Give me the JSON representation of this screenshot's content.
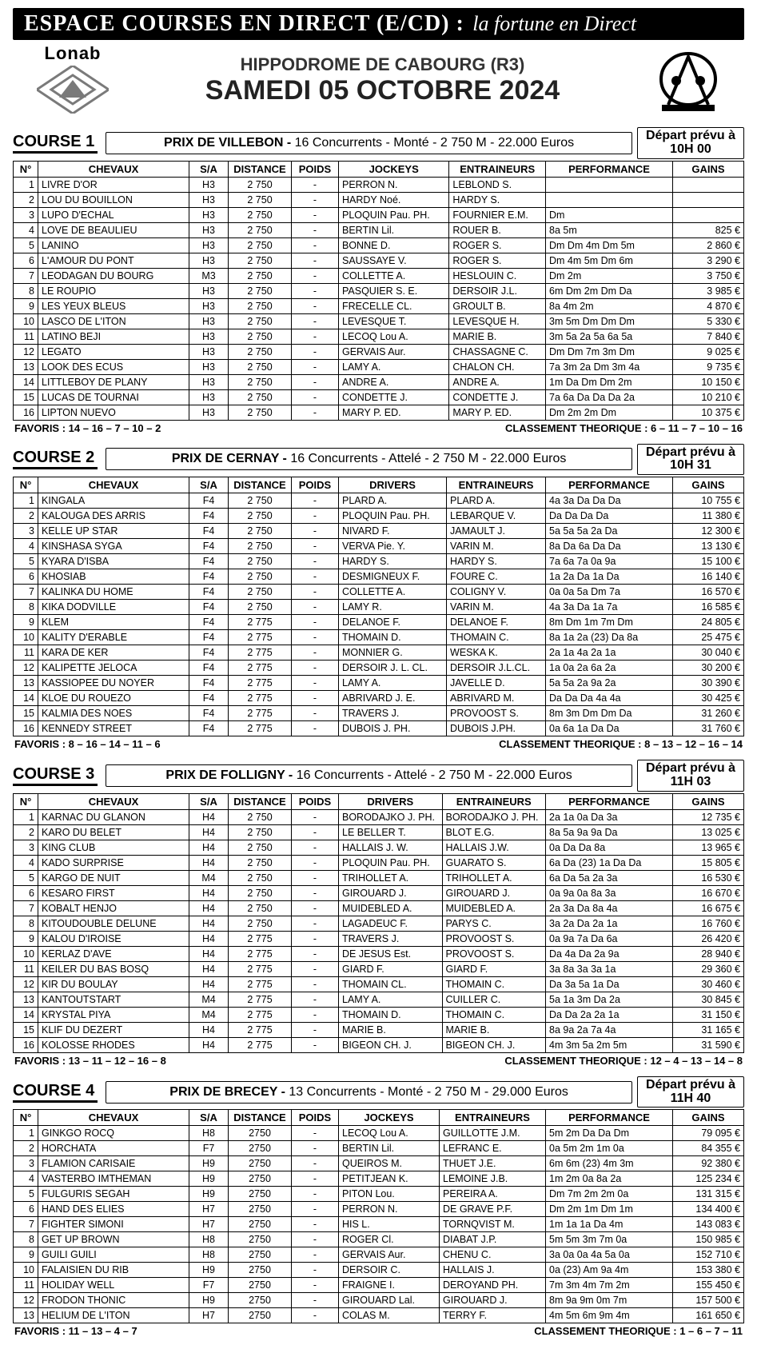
{
  "top": {
    "main": "ESPACE COURSES EN DIRECT (E/CD) :",
    "sub": "la fortune en Direct"
  },
  "header": {
    "hippodrome": "HIPPODROME DE CABOURG (R3)",
    "date": "SAMEDI 05 OCTOBRE 2024",
    "logo_text": "Lonab"
  },
  "table_headers_jockeys": {
    "num": "N°",
    "chev": "CHEVAUX",
    "sa": "S/A",
    "dist": "DISTANCE",
    "poids": "POIDS",
    "pilots": "JOCKEYS",
    "ent": "ENTRAINEURS",
    "perf": "PERFORMANCE",
    "gains": "GAINS"
  },
  "table_headers_drivers": {
    "num": "N°",
    "chev": "CHEVAUX",
    "sa": "S/A",
    "dist": "DISTANCE",
    "poids": "POIDS",
    "pilots": "DRIVERS",
    "ent": "ENTRAINEURS",
    "perf": "PERFORMANCE",
    "gains": "GAINS"
  },
  "depart_label": "Départ prévu à",
  "favoris_label": "FAVORIS :",
  "classement_label": "CLASSEMENT THEORIQUE :",
  "courses": [
    {
      "label": "COURSE 1",
      "race_name": "PRIX DE VILLEBON -",
      "race_details": "16 Concurrents - Monté - 2 750 M - 22.000 Euros",
      "depart": "10H 00",
      "pilots_key": "JOCKEYS",
      "favoris": "14 – 16 – 7 – 10 – 2",
      "classement": "6 – 11 – 7 – 10 – 16",
      "rows": [
        {
          "n": "1",
          "ch": "LIVRE D'OR",
          "sa": "H3",
          "d": "2 750",
          "p": "-",
          "pi": "PERRON N.",
          "en": "LEBLOND S.",
          "pe": "",
          "g": ""
        },
        {
          "n": "2",
          "ch": "LOU DU BOUILLON",
          "sa": "H3",
          "d": "2 750",
          "p": "-",
          "pi": "HARDY Noé.",
          "en": "HARDY S.",
          "pe": "",
          "g": ""
        },
        {
          "n": "3",
          "ch": "LUPO D'ECHAL",
          "sa": "H3",
          "d": "2 750",
          "p": "-",
          "pi": "PLOQUIN Pau. PH.",
          "en": "FOURNIER E.M.",
          "pe": "Dm",
          "g": ""
        },
        {
          "n": "4",
          "ch": "LOVE DE BEAULIEU",
          "sa": "H3",
          "d": "2 750",
          "p": "-",
          "pi": "BERTIN Lil.",
          "en": "ROUER B.",
          "pe": "8a 5m",
          "g": "825 €"
        },
        {
          "n": "5",
          "ch": "LANINO",
          "sa": "H3",
          "d": "2 750",
          "p": "-",
          "pi": "BONNE D.",
          "en": "ROGER S.",
          "pe": "Dm Dm 4m Dm 5m",
          "g": "2 860 €"
        },
        {
          "n": "6",
          "ch": "L'AMOUR DU PONT",
          "sa": "H3",
          "d": "2 750",
          "p": "-",
          "pi": "SAUSSAYE V.",
          "en": "ROGER S.",
          "pe": "Dm 4m 5m Dm 6m",
          "g": "3 290 €"
        },
        {
          "n": "7",
          "ch": "LEODAGAN DU BOURG",
          "sa": "M3",
          "d": "2 750",
          "p": "-",
          "pi": "COLLETTE A.",
          "en": "HESLOUIN C.",
          "pe": "Dm 2m",
          "g": "3 750 €"
        },
        {
          "n": "8",
          "ch": "LE ROUPIO",
          "sa": "H3",
          "d": "2 750",
          "p": "-",
          "pi": "PASQUIER S. E.",
          "en": "DERSOIR J.L.",
          "pe": "6m Dm 2m Dm Da",
          "g": "3 985 €"
        },
        {
          "n": "9",
          "ch": "LES YEUX BLEUS",
          "sa": "H3",
          "d": "2 750",
          "p": "-",
          "pi": "FRECELLE CL.",
          "en": "GROULT B.",
          "pe": "8a 4m 2m",
          "g": "4 870 €"
        },
        {
          "n": "10",
          "ch": "LASCO DE L'ITON",
          "sa": "H3",
          "d": "2 750",
          "p": "-",
          "pi": "LEVESQUE T.",
          "en": "LEVESQUE H.",
          "pe": "3m 5m Dm Dm Dm",
          "g": "5 330 €"
        },
        {
          "n": "11",
          "ch": "LATINO BEJI",
          "sa": "H3",
          "d": "2 750",
          "p": "-",
          "pi": "LECOQ Lou A.",
          "en": "MARIE B.",
          "pe": "3m 5a 2a 5a 6a 5a",
          "g": "7 840 €"
        },
        {
          "n": "12",
          "ch": "LEGATO",
          "sa": "H3",
          "d": "2 750",
          "p": "-",
          "pi": "GERVAIS Aur.",
          "en": "CHASSAGNE C.",
          "pe": "Dm Dm 7m 3m Dm",
          "g": "9 025 €"
        },
        {
          "n": "13",
          "ch": "LOOK DES ECUS",
          "sa": "H3",
          "d": "2 750",
          "p": "-",
          "pi": "LAMY A.",
          "en": "CHALON CH.",
          "pe": "7a 3m 2a Dm 3m 4a",
          "g": "9 735 €"
        },
        {
          "n": "14",
          "ch": "LITTLEBOY DE PLANY",
          "sa": "H3",
          "d": "2 750",
          "p": "-",
          "pi": "ANDRE A.",
          "en": "ANDRE A.",
          "pe": "1m Da Dm Dm 2m",
          "g": "10 150 €"
        },
        {
          "n": "15",
          "ch": "LUCAS DE TOURNAI",
          "sa": "H3",
          "d": "2 750",
          "p": "-",
          "pi": "CONDETTE J.",
          "en": "CONDETTE J.",
          "pe": "7a 6a Da Da Da 2a",
          "g": "10 210 €"
        },
        {
          "n": "16",
          "ch": "LIPTON NUEVO",
          "sa": "H3",
          "d": "2 750",
          "p": "-",
          "pi": "MARY P. ED.",
          "en": "MARY P. ED.",
          "pe": "Dm 2m 2m Dm",
          "g": "10 375 €"
        }
      ]
    },
    {
      "label": "COURSE 2",
      "race_name": "PRIX DE CERNAY -",
      "race_details": "16 Concurrents - Attelé - 2 750 M - 22.000 Euros",
      "depart": "10H 31",
      "pilots_key": "DRIVERS",
      "favoris": "8 – 16 – 14 – 11 – 6",
      "classement": "8 – 13 – 12 – 16 – 14",
      "rows": [
        {
          "n": "1",
          "ch": "KINGALA",
          "sa": "F4",
          "d": "2 750",
          "p": "-",
          "pi": "PLARD A.",
          "en": "PLARD A.",
          "pe": "4a 3a Da Da Da",
          "g": "10 755 €"
        },
        {
          "n": "2",
          "ch": "KALOUGA DES ARRIS",
          "sa": "F4",
          "d": "2 750",
          "p": "-",
          "pi": "PLOQUIN Pau. PH.",
          "en": "LEBARQUE V.",
          "pe": "Da Da Da Da",
          "g": "11 380 €"
        },
        {
          "n": "3",
          "ch": "KELLE UP STAR",
          "sa": "F4",
          "d": "2 750",
          "p": "-",
          "pi": "NIVARD F.",
          "en": "JAMAULT J.",
          "pe": "5a 5a 5a 2a Da",
          "g": "12 300 €"
        },
        {
          "n": "4",
          "ch": "KINSHASA SYGA",
          "sa": "F4",
          "d": "2 750",
          "p": "-",
          "pi": "VERVA Pie. Y.",
          "en": "VARIN M.",
          "pe": "8a Da 6a Da Da",
          "g": "13 130 €"
        },
        {
          "n": "5",
          "ch": "KYARA D'ISBA",
          "sa": "F4",
          "d": "2 750",
          "p": "-",
          "pi": "HARDY S.",
          "en": "HARDY S.",
          "pe": "7a 6a 7a 0a 9a",
          "g": "15 100 €"
        },
        {
          "n": "6",
          "ch": "KHOSIAB",
          "sa": "F4",
          "d": "2 750",
          "p": "-",
          "pi": "DESMIGNEUX F.",
          "en": "FOURE C.",
          "pe": "1a 2a Da 1a Da",
          "g": "16 140 €"
        },
        {
          "n": "7",
          "ch": "KALINKA DU HOME",
          "sa": "F4",
          "d": "2 750",
          "p": "-",
          "pi": "COLLETTE A.",
          "en": "COLIGNY V.",
          "pe": "0a 0a 5a Dm 7a",
          "g": "16 570 €"
        },
        {
          "n": "8",
          "ch": "KIKA DODVILLE",
          "sa": "F4",
          "d": "2 750",
          "p": "-",
          "pi": "LAMY R.",
          "en": "VARIN M.",
          "pe": "4a 3a Da 1a 7a",
          "g": "16 585 €"
        },
        {
          "n": "9",
          "ch": "KLEM",
          "sa": "F4",
          "d": "2 775",
          "p": "-",
          "pi": "DELANOE F.",
          "en": "DELANOE F.",
          "pe": "8m Dm 1m 7m Dm",
          "g": "24 805 €"
        },
        {
          "n": "10",
          "ch": "KALITY D'ERABLE",
          "sa": "F4",
          "d": "2 775",
          "p": "-",
          "pi": "THOMAIN D.",
          "en": "THOMAIN C.",
          "pe": "8a 1a 2a (23) Da 8a",
          "g": "25 475 €"
        },
        {
          "n": "11",
          "ch": "KARA DE KER",
          "sa": "F4",
          "d": "2 775",
          "p": "-",
          "pi": "MONNIER G.",
          "en": "WESKA K.",
          "pe": "2a 1a 4a 2a 1a",
          "g": "30 040 €"
        },
        {
          "n": "12",
          "ch": "KALIPETTE JELOCA",
          "sa": "F4",
          "d": "2 775",
          "p": "-",
          "pi": "DERSOIR J. L. CL.",
          "en": "DERSOIR J.L.CL.",
          "pe": "1a 0a 2a 6a 2a",
          "g": "30 200 €"
        },
        {
          "n": "13",
          "ch": "KASSIOPEE DU NOYER",
          "sa": "F4",
          "d": "2 775",
          "p": "-",
          "pi": "LAMY A.",
          "en": "JAVELLE D.",
          "pe": "5a 5a 2a 9a 2a",
          "g": "30 390 €"
        },
        {
          "n": "14",
          "ch": "KLOE DU ROUEZO",
          "sa": "F4",
          "d": "2 775",
          "p": "-",
          "pi": "ABRIVARD J. E.",
          "en": "ABRIVARD M.",
          "pe": "Da Da Da 4a 4a",
          "g": "30 425 €"
        },
        {
          "n": "15",
          "ch": "KALMIA DES NOES",
          "sa": "F4",
          "d": "2 775",
          "p": "-",
          "pi": "TRAVERS J.",
          "en": "PROVOOST S.",
          "pe": "8m 3m Dm Dm Da",
          "g": "31 260 €"
        },
        {
          "n": "16",
          "ch": "KENNEDY STREET",
          "sa": "F4",
          "d": "2 775",
          "p": "-",
          "pi": "DUBOIS J. PH.",
          "en": "DUBOIS J.PH.",
          "pe": "0a 6a 1a Da Da",
          "g": "31 760 €"
        }
      ]
    },
    {
      "label": "COURSE 3",
      "race_name": "PRIX DE FOLLIGNY -",
      "race_details": "16 Concurrents - Attelé - 2 750 M - 22.000 Euros",
      "depart": "11H 03",
      "pilots_key": "DRIVERS",
      "favoris": "13 – 11 – 12 – 16 – 8",
      "classement": "12 – 4 – 13 – 14 – 8",
      "rows": [
        {
          "n": "1",
          "ch": "KARNAC DU GLANON",
          "sa": "H4",
          "d": "2 750",
          "p": "-",
          "pi": "BORODAJKO J. PH.",
          "en": "BORODAJKO J. PH.",
          "pe": "2a 1a 0a Da 3a",
          "g": "12 735 €"
        },
        {
          "n": "2",
          "ch": "KARO DU BELET",
          "sa": "H4",
          "d": "2 750",
          "p": "-",
          "pi": "LE BELLER T.",
          "en": "BLOT E.G.",
          "pe": "8a 5a 9a 9a Da",
          "g": "13 025 €"
        },
        {
          "n": "3",
          "ch": "KING CLUB",
          "sa": "H4",
          "d": "2 750",
          "p": "-",
          "pi": "HALLAIS J. W.",
          "en": "HALLAIS J.W.",
          "pe": "0a Da Da 8a",
          "g": "13 965 €"
        },
        {
          "n": "4",
          "ch": "KADO SURPRISE",
          "sa": "H4",
          "d": "2 750",
          "p": "-",
          "pi": "PLOQUIN Pau. PH.",
          "en": "GUARATO S.",
          "pe": "6a Da (23) 1a Da Da",
          "g": "15 805 €"
        },
        {
          "n": "5",
          "ch": "KARGO DE NUIT",
          "sa": "M4",
          "d": "2 750",
          "p": "-",
          "pi": "TRIHOLLET A.",
          "en": "TRIHOLLET A.",
          "pe": "6a Da 5a 2a 3a",
          "g": "16 530 €"
        },
        {
          "n": "6",
          "ch": "KESARO FIRST",
          "sa": "H4",
          "d": "2 750",
          "p": "-",
          "pi": "GIROUARD J.",
          "en": "GIROUARD J.",
          "pe": "0a 9a 0a 8a 3a",
          "g": "16 670 €"
        },
        {
          "n": "7",
          "ch": "KOBALT HENJO",
          "sa": "H4",
          "d": "2 750",
          "p": "-",
          "pi": "MUIDEBLED A.",
          "en": "MUIDEBLED A.",
          "pe": "2a 3a Da 8a 4a",
          "g": "16 675 €"
        },
        {
          "n": "8",
          "ch": "KITOUDOUBLE DELUNE",
          "sa": "H4",
          "d": "2 750",
          "p": "-",
          "pi": "LAGADEUC F.",
          "en": "PARYS C.",
          "pe": "3a 2a Da 2a 1a",
          "g": "16 760 €"
        },
        {
          "n": "9",
          "ch": "KALOU D'IROISE",
          "sa": "H4",
          "d": "2 775",
          "p": "-",
          "pi": "TRAVERS J.",
          "en": "PROVOOST S.",
          "pe": "0a 9a 7a Da 6a",
          "g": "26 420 €"
        },
        {
          "n": "10",
          "ch": "KERLAZ D'AVE",
          "sa": "H4",
          "d": "2 775",
          "p": "-",
          "pi": "DE JESUS Est.",
          "en": "PROVOOST S.",
          "pe": "Da 4a Da 2a 9a",
          "g": "28 940 €"
        },
        {
          "n": "11",
          "ch": "KEILER DU BAS BOSQ",
          "sa": "H4",
          "d": "2 775",
          "p": "-",
          "pi": "GIARD F.",
          "en": "GIARD F.",
          "pe": "3a 8a 3a 3a 1a",
          "g": "29 360 €"
        },
        {
          "n": "12",
          "ch": "KIR DU BOULAY",
          "sa": "H4",
          "d": "2 775",
          "p": "-",
          "pi": "THOMAIN CL.",
          "en": "THOMAIN C.",
          "pe": "Da 3a 5a 1a Da",
          "g": "30 460 €"
        },
        {
          "n": "13",
          "ch": "KANTOUTSTART",
          "sa": "M4",
          "d": "2 775",
          "p": "-",
          "pi": "LAMY A.",
          "en": "CUILLER C.",
          "pe": "5a 1a 3m Da 2a",
          "g": "30 845 €"
        },
        {
          "n": "14",
          "ch": "KRYSTAL PIYA",
          "sa": "M4",
          "d": "2 775",
          "p": "-",
          "pi": "THOMAIN D.",
          "en": "THOMAIN C.",
          "pe": "Da Da 2a 2a 1a",
          "g": "31 150 €"
        },
        {
          "n": "15",
          "ch": "KLIF DU DEZERT",
          "sa": "H4",
          "d": "2 775",
          "p": "-",
          "pi": "MARIE B.",
          "en": "MARIE B.",
          "pe": "8a 9a 2a 7a 4a",
          "g": "31 165 €"
        },
        {
          "n": "16",
          "ch": "KOLOSSE RHODES",
          "sa": "H4",
          "d": "2 775",
          "p": "-",
          "pi": "BIGEON CH. J.",
          "en": "BIGEON CH. J.",
          "pe": "4m 3m 5a 2m 5m",
          "g": "31 590 €"
        }
      ]
    },
    {
      "label": "COURSE 4",
      "race_name": "PRIX DE BRECEY -",
      "race_details": "13 Concurrents - Monté - 2 750 M - 29.000 Euros",
      "depart": "11H 40",
      "pilots_key": "JOCKEYS",
      "favoris": "11 – 13 – 4 – 7",
      "classement": "1 – 6 – 7 – 11",
      "rows": [
        {
          "n": "1",
          "ch": "GINKGO ROCQ",
          "sa": "H8",
          "d": "2750",
          "p": "-",
          "pi": "LECOQ Lou A.",
          "en": "GUILLOTTE J.M.",
          "pe": "5m 2m Da Da Dm",
          "g": "79 095 €"
        },
        {
          "n": "2",
          "ch": "HORCHATA",
          "sa": "F7",
          "d": "2750",
          "p": "-",
          "pi": "BERTIN Lil.",
          "en": "LEFRANC E.",
          "pe": "0a 5m 2m 1m 0a",
          "g": "84 355 €"
        },
        {
          "n": "3",
          "ch": "FLAMION CARISAIE",
          "sa": "H9",
          "d": "2750",
          "p": "-",
          "pi": "QUEIROS M.",
          "en": "THUET J.E.",
          "pe": "6m 6m (23) 4m 3m",
          "g": "92 380 €"
        },
        {
          "n": "4",
          "ch": "VASTERBO IMTHEMAN",
          "sa": "H9",
          "d": "2750",
          "p": "-",
          "pi": "PETITJEAN K.",
          "en": "LEMOINE J.B.",
          "pe": "1m 2m 0a 8a 2a",
          "g": "125 234 €"
        },
        {
          "n": "5",
          "ch": "FULGURIS SEGAH",
          "sa": "H9",
          "d": "2750",
          "p": "-",
          "pi": "PITON Lou.",
          "en": "PEREIRA A.",
          "pe": "Dm 7m 2m 2m 0a",
          "g": "131 315 €"
        },
        {
          "n": "6",
          "ch": "HAND DES ELIES",
          "sa": "H7",
          "d": "2750",
          "p": "-",
          "pi": "PERRON N.",
          "en": "DE GRAVE P.F.",
          "pe": "Dm 2m 1m Dm 1m",
          "g": "134 400 €"
        },
        {
          "n": "7",
          "ch": "FIGHTER SIMONI",
          "sa": "H7",
          "d": "2750",
          "p": "-",
          "pi": "HIS L.",
          "en": "TORNQVIST M.",
          "pe": "1m 1a 1a Da 4m",
          "g": "143 083 €"
        },
        {
          "n": "8",
          "ch": "GET UP BROWN",
          "sa": "H8",
          "d": "2750",
          "p": "-",
          "pi": "ROGER Cl.",
          "en": "DIABAT J.P.",
          "pe": "5m 5m 3m 7m 0a",
          "g": "150 985 €"
        },
        {
          "n": "9",
          "ch": "GUILI GUILI",
          "sa": "H8",
          "d": "2750",
          "p": "-",
          "pi": "GERVAIS Aur.",
          "en": "CHENU C.",
          "pe": "3a 0a 0a 4a 5a 0a",
          "g": "152 710 €"
        },
        {
          "n": "10",
          "ch": "FALAISIEN DU RIB",
          "sa": "H9",
          "d": "2750",
          "p": "-",
          "pi": "DERSOIR C.",
          "en": "HALLAIS J.",
          "pe": "0a (23) Am 9a 4m",
          "g": "153 380 €"
        },
        {
          "n": "11",
          "ch": "HOLIDAY WELL",
          "sa": "F7",
          "d": "2750",
          "p": "-",
          "pi": "FRAIGNE I.",
          "en": "DEROYAND PH.",
          "pe": "7m 3m 4m 7m 2m",
          "g": "155 450 €"
        },
        {
          "n": "12",
          "ch": "FRODON THONIC",
          "sa": "H9",
          "d": "2750",
          "p": "-",
          "pi": "GIROUARD Lal.",
          "en": "GIROUARD J.",
          "pe": "8m 9a 9m 0m 7m",
          "g": "157 500 €"
        },
        {
          "n": "13",
          "ch": "HELIUM DE L'ITON",
          "sa": "H7",
          "d": "2750",
          "p": "-",
          "pi": "COLAS M.",
          "en": "TERRY F.",
          "pe": "4m 5m 6m 9m 4m",
          "g": "161 650 €"
        }
      ]
    }
  ]
}
